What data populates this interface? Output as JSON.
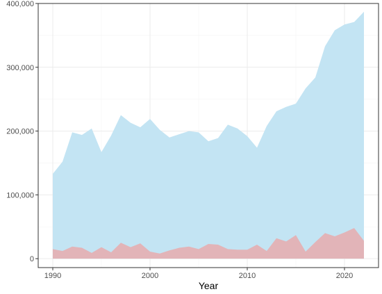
{
  "chart_data": {
    "type": "area",
    "title": "",
    "xlabel": "Year",
    "ylabel": "",
    "xlim": [
      1988.5,
      2023.5
    ],
    "ylim": [
      -14000,
      400000
    ],
    "x_ticks": [
      1990,
      2000,
      2010,
      2020
    ],
    "x_tick_labels": [
      "1990",
      "2000",
      "2010",
      "2020"
    ],
    "y_ticks": [
      0,
      100000,
      200000,
      300000,
      400000
    ],
    "y_tick_labels": [
      "0",
      "100,000",
      "200,000",
      "300,000",
      "400,000"
    ],
    "grid": true,
    "legend": "none",
    "x": [
      1990,
      1991,
      1992,
      1993,
      1994,
      1995,
      1996,
      1997,
      1998,
      1999,
      2000,
      2001,
      2002,
      2003,
      2004,
      2005,
      2006,
      2007,
      2008,
      2009,
      2010,
      2011,
      2012,
      2013,
      2014,
      2015,
      2016,
      2017,
      2018,
      2019,
      2020,
      2021,
      2022
    ],
    "series": [
      {
        "color": "#c3e4f3",
        "values": [
          133000,
          152000,
          198000,
          194000,
          204000,
          167000,
          193000,
          225000,
          213000,
          206000,
          219000,
          202000,
          190000,
          195000,
          200000,
          198000,
          184000,
          189000,
          210000,
          204000,
          192000,
          174000,
          208000,
          231000,
          238000,
          243000,
          267000,
          284000,
          333000,
          358000,
          367000,
          371000,
          387000
        ]
      },
      {
        "color": "#e2b4b8",
        "values": [
          15000,
          12000,
          19000,
          17000,
          9000,
          18000,
          10000,
          25000,
          18000,
          24000,
          11000,
          8000,
          13000,
          17000,
          19000,
          15000,
          23000,
          22000,
          15000,
          14000,
          14000,
          22000,
          12000,
          32000,
          27000,
          37000,
          11000,
          26000,
          40000,
          35000,
          41000,
          48000,
          28000
        ]
      }
    ]
  }
}
